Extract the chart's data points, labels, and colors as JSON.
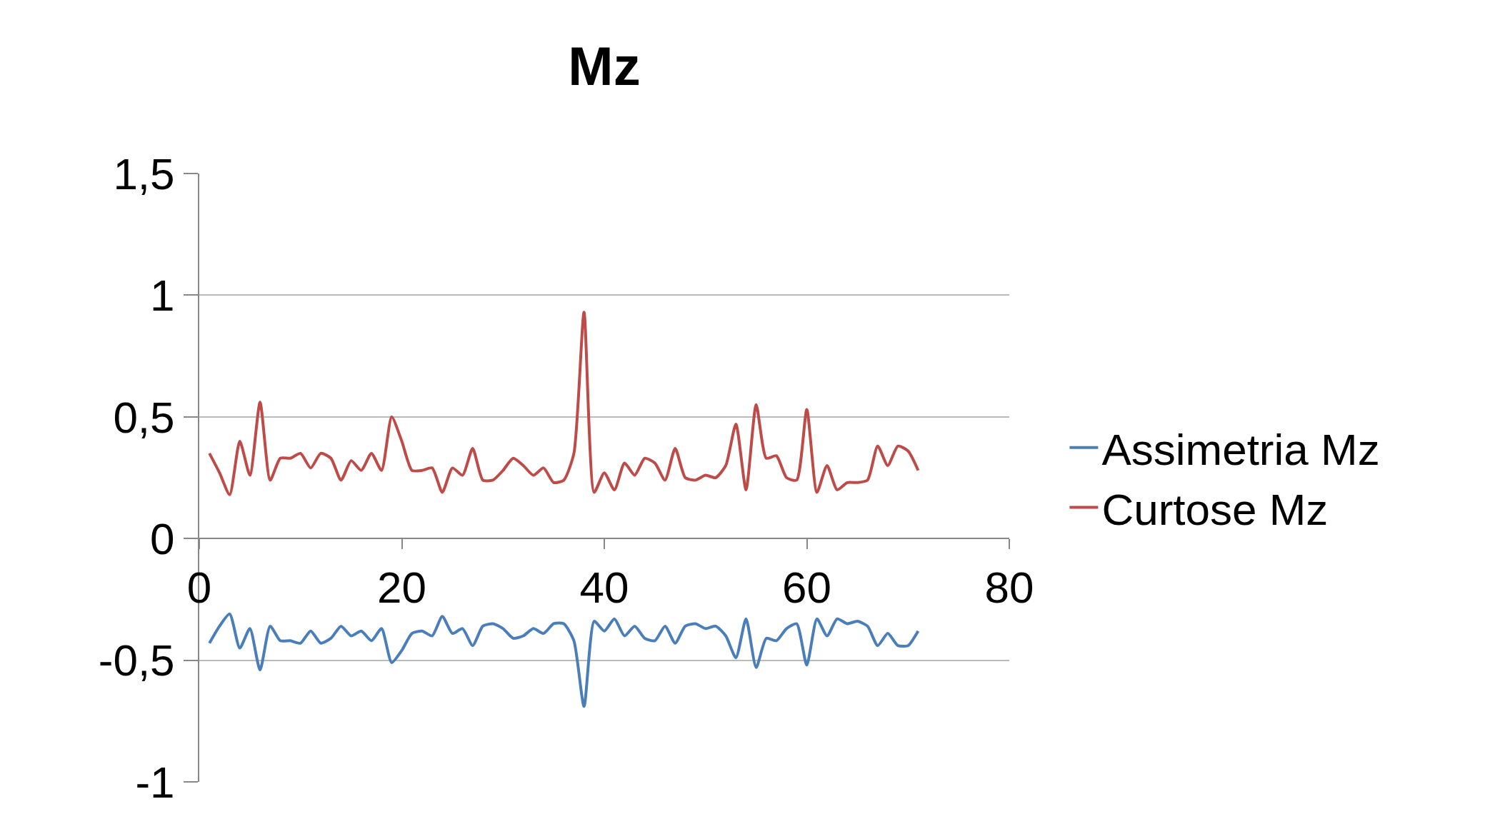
{
  "chart_data": {
    "type": "line",
    "title": "Mz",
    "x": [
      1,
      2,
      3,
      4,
      5,
      6,
      7,
      8,
      9,
      10,
      11,
      12,
      13,
      14,
      15,
      16,
      17,
      18,
      19,
      20,
      21,
      22,
      23,
      24,
      25,
      26,
      27,
      28,
      29,
      30,
      31,
      32,
      33,
      34,
      35,
      36,
      37,
      38,
      39,
      40,
      41,
      42,
      43,
      44,
      45,
      46,
      47,
      48,
      49,
      50,
      51,
      52,
      53,
      54,
      55,
      56,
      57,
      58,
      59,
      60,
      61,
      62,
      63,
      64,
      65,
      66,
      67,
      68,
      69,
      70,
      71
    ],
    "series": [
      {
        "name": "Assimetria Mz",
        "color": "#4a7ebb",
        "values": [
          -0.43,
          -0.36,
          -0.31,
          -0.45,
          -0.37,
          -0.54,
          -0.36,
          -0.42,
          -0.42,
          -0.43,
          -0.38,
          -0.43,
          -0.41,
          -0.36,
          -0.4,
          -0.38,
          -0.42,
          -0.37,
          -0.51,
          -0.46,
          -0.39,
          -0.38,
          -0.4,
          -0.32,
          -0.39,
          -0.37,
          -0.44,
          -0.36,
          -0.35,
          -0.37,
          -0.41,
          -0.4,
          -0.37,
          -0.39,
          -0.35,
          -0.35,
          -0.42,
          -0.69,
          -0.34,
          -0.38,
          -0.33,
          -0.4,
          -0.36,
          -0.41,
          -0.42,
          -0.36,
          -0.43,
          -0.36,
          -0.35,
          -0.37,
          -0.36,
          -0.4,
          -0.49,
          -0.33,
          -0.53,
          -0.41,
          -0.42,
          -0.37,
          -0.35,
          -0.52,
          -0.33,
          -0.4,
          -0.33,
          -0.35,
          -0.34,
          -0.36,
          -0.44,
          -0.39,
          -0.44,
          -0.44,
          -0.38
        ]
      },
      {
        "name": "Curtose Mz",
        "color": "#be4b48",
        "values": [
          0.35,
          0.27,
          0.18,
          0.4,
          0.26,
          0.56,
          0.24,
          0.33,
          0.33,
          0.35,
          0.29,
          0.35,
          0.33,
          0.24,
          0.32,
          0.28,
          0.35,
          0.28,
          0.5,
          0.4,
          0.28,
          0.28,
          0.29,
          0.19,
          0.29,
          0.26,
          0.37,
          0.24,
          0.24,
          0.28,
          0.33,
          0.3,
          0.26,
          0.29,
          0.23,
          0.24,
          0.35,
          0.93,
          0.19,
          0.27,
          0.2,
          0.31,
          0.26,
          0.33,
          0.31,
          0.24,
          0.37,
          0.25,
          0.24,
          0.26,
          0.25,
          0.3,
          0.47,
          0.2,
          0.55,
          0.33,
          0.34,
          0.25,
          0.24,
          0.53,
          0.19,
          0.3,
          0.2,
          0.23,
          0.23,
          0.24,
          0.38,
          0.3,
          0.38,
          0.36,
          0.28
        ]
      }
    ],
    "xlim": [
      0,
      80
    ],
    "xticks": [
      0,
      20,
      40,
      60,
      80
    ],
    "ylim": [
      -1,
      1.5
    ],
    "yticks": [
      {
        "value": -1,
        "label": "-1"
      },
      {
        "value": -0.5,
        "label": "-0,5"
      },
      {
        "value": 0,
        "label": "0"
      },
      {
        "value": 0.5,
        "label": "0,5"
      },
      {
        "value": 1,
        "label": "1"
      },
      {
        "value": 1.5,
        "label": "1,5"
      }
    ],
    "grid": "y",
    "legend": "right",
    "marker": "none",
    "line_style": "solid"
  }
}
